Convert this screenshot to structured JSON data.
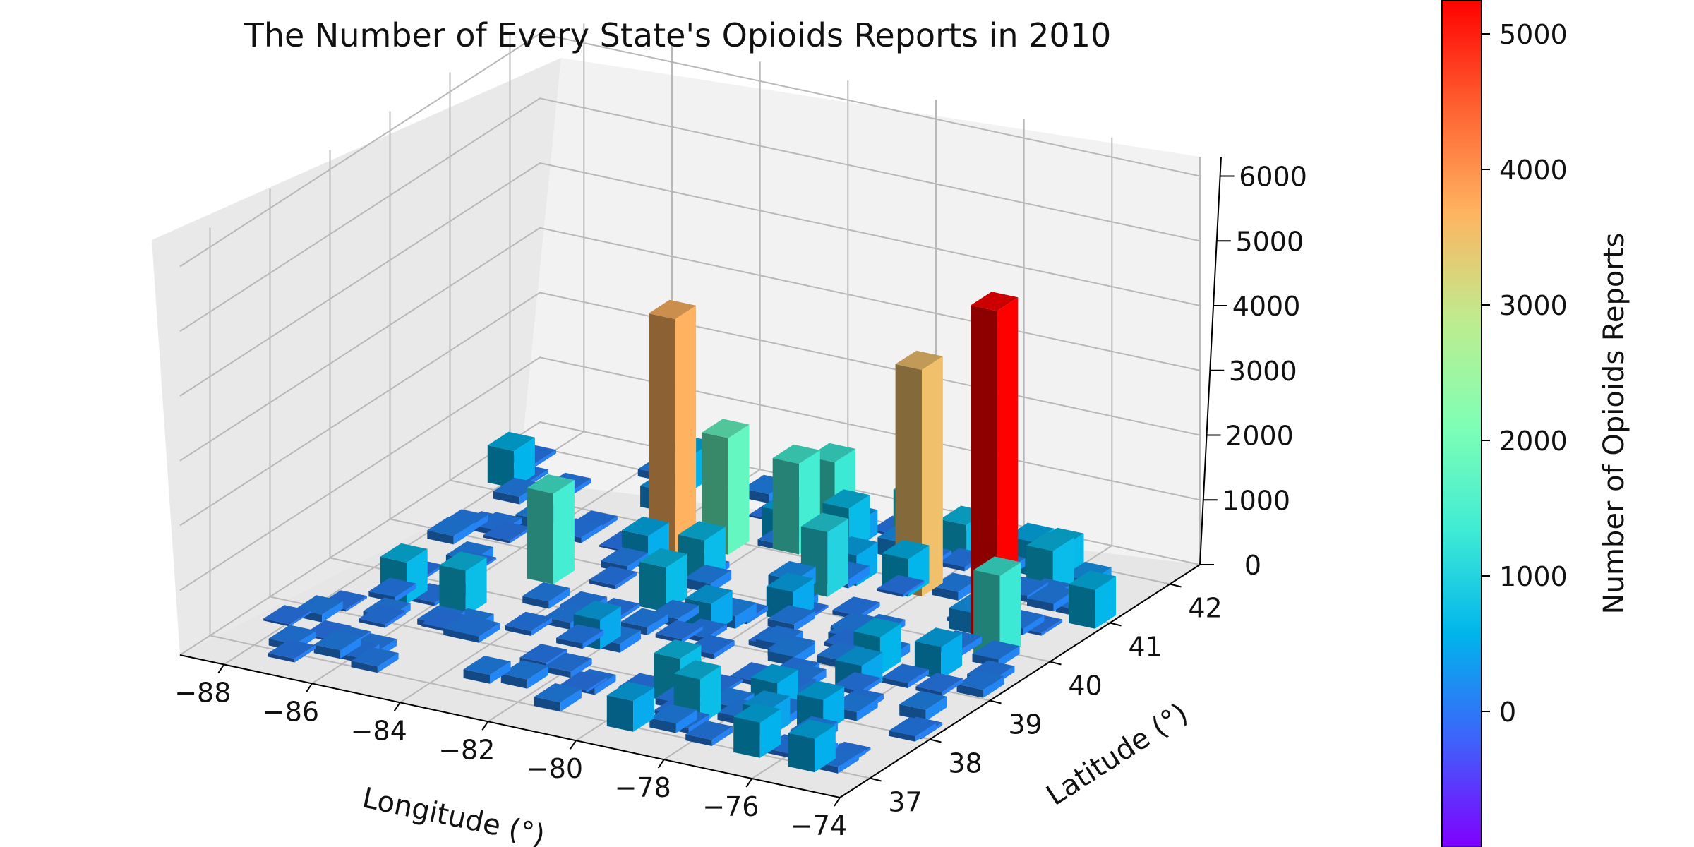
{
  "chart_data": {
    "type": "bar3d",
    "title": "The Number of Every State's Opioids Reports in 2010",
    "xlabel": "Longitude (°)",
    "ylabel": "Latitude (°)",
    "zlabel": "",
    "xlim": [
      -89,
      -74
    ],
    "ylim": [
      36.5,
      42.5
    ],
    "zlim": [
      0,
      6300
    ],
    "x_ticks": [
      "−88",
      "−86",
      "−84",
      "−82",
      "−80",
      "−78",
      "−76",
      "−74"
    ],
    "y_ticks": [
      "37",
      "38",
      "39",
      "40",
      "41",
      "42"
    ],
    "z_ticks": [
      "0",
      "1000",
      "2000",
      "3000",
      "4000",
      "5000",
      "6000"
    ],
    "grid": true,
    "tall_bars": [
      {
        "longitude": -84.8,
        "latitude": 39.6,
        "reports": 1400
      },
      {
        "longitude": -83.4,
        "latitude": 40.6,
        "reports": 3700
      },
      {
        "longitude": -82.6,
        "latitude": 40.9,
        "reports": 1800
      },
      {
        "longitude": -81.4,
        "latitude": 41.2,
        "reports": 1400
      },
      {
        "longitude": -81.0,
        "latitude": 41.5,
        "reports": 1300
      },
      {
        "longitude": -79.8,
        "latitude": 40.5,
        "reports": 1000
      },
      {
        "longitude": -79.2,
        "latitude": 41.6,
        "reports": 1000
      },
      {
        "longitude": -78.2,
        "latitude": 40.9,
        "reports": 3500
      },
      {
        "longitude": -75.2,
        "latitude": 40.0,
        "reports": 1300
      },
      {
        "longitude": -75.4,
        "latitude": 40.1,
        "reports": 5300
      },
      {
        "longitude": -74.4,
        "latitude": 41.0,
        "reports": 600
      },
      {
        "longitude": -78.6,
        "latitude": 37.5,
        "reports": 700
      }
    ],
    "colorbar": {
      "label": "Number of Opioids Reports",
      "ticks": [
        "0",
        "1000",
        "2000",
        "3000",
        "4000",
        "5000"
      ],
      "min": -1000,
      "max": 5250,
      "colormap": [
        "#8000ff",
        "#3f61fa",
        "#00b4ec",
        "#40ecd4",
        "#80ffb4",
        "#c0eb8d",
        "#ffb360",
        "#ff6030",
        "#ff0000"
      ]
    }
  }
}
